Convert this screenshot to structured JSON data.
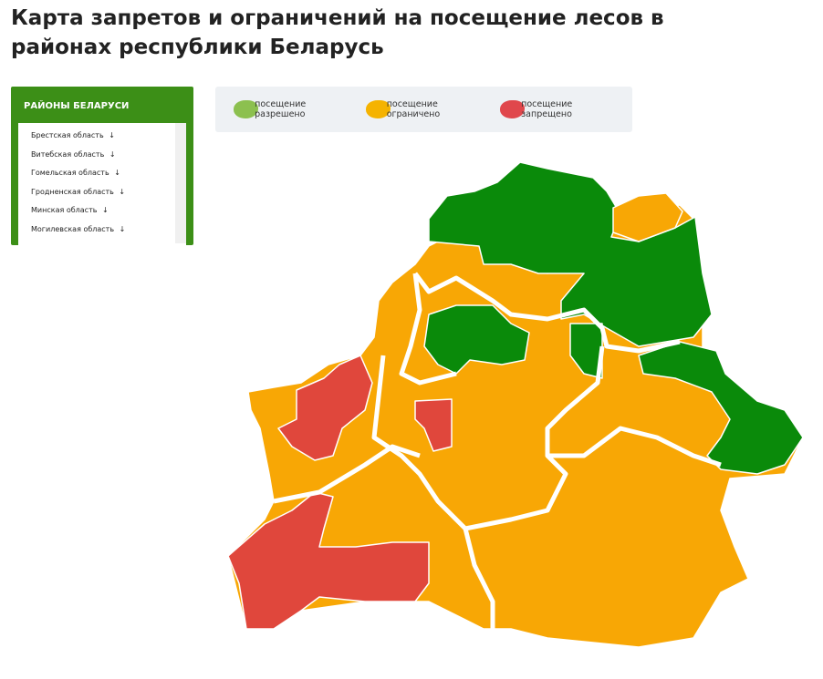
{
  "header": {
    "title": "Карта запретов и ограничений на посещение лесов в районах республики Беларусь"
  },
  "sidebar": {
    "title": "РАЙОНЫ БЕЛАРУСИ",
    "items": [
      "Брестская область",
      "Витебская область",
      "Гомельская область",
      "Гродненская область",
      "Минская область",
      "Могилевская область"
    ]
  },
  "legend": {
    "items": [
      {
        "label": "посещение разрешено",
        "color": "#8cc04f"
      },
      {
        "label": "посещение ограничено",
        "color": "#f5b301"
      },
      {
        "label": "посещение запрещено",
        "color": "#e0474c"
      }
    ]
  }
}
